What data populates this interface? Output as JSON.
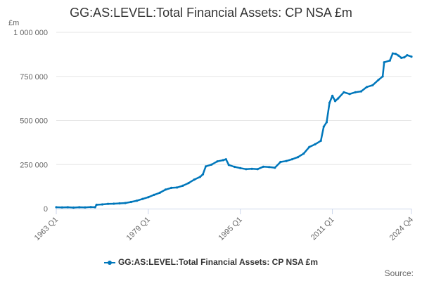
{
  "chart_data": {
    "type": "line",
    "title": "GG:AS:LEVEL:Total Financial Assets: CP NSA £m",
    "ylabel": "£m",
    "ylim": [
      0,
      1000000
    ],
    "yticks": [
      0,
      250000,
      500000,
      750000,
      1000000
    ],
    "ytick_labels": [
      "0",
      "250 000",
      "500 000",
      "750 000",
      "1 000 000"
    ],
    "xrange": [
      1963.0,
      2024.75
    ],
    "xticks": [
      {
        "x": 1963.0,
        "label": "1963 Q1"
      },
      {
        "x": 1979.0,
        "label": "1979 Q1"
      },
      {
        "x": 1995.0,
        "label": "1995 Q1"
      },
      {
        "x": 2011.0,
        "label": "2011 Q1"
      },
      {
        "x": 2024.75,
        "label": "2024 Q4"
      }
    ],
    "grid": true,
    "legend_position": "bottom",
    "color": "#0077bb",
    "series": [
      {
        "name": "GG:AS:LEVEL:Total Financial Assets: CP NSA £m",
        "points": [
          [
            1963.0,
            8000
          ],
          [
            1964.0,
            7000
          ],
          [
            1965.0,
            8000
          ],
          [
            1966.0,
            6000
          ],
          [
            1967.0,
            8000
          ],
          [
            1968.0,
            7000
          ],
          [
            1969.0,
            9000
          ],
          [
            1969.75,
            8000
          ],
          [
            1970.0,
            22000
          ],
          [
            1971.0,
            24000
          ],
          [
            1972.0,
            27000
          ],
          [
            1973.0,
            28000
          ],
          [
            1974.0,
            30000
          ],
          [
            1975.0,
            32000
          ],
          [
            1976.0,
            38000
          ],
          [
            1977.0,
            45000
          ],
          [
            1978.0,
            55000
          ],
          [
            1979.0,
            65000
          ],
          [
            1980.0,
            78000
          ],
          [
            1981.0,
            90000
          ],
          [
            1982.0,
            108000
          ],
          [
            1983.0,
            118000
          ],
          [
            1984.0,
            120000
          ],
          [
            1985.0,
            130000
          ],
          [
            1986.0,
            145000
          ],
          [
            1987.0,
            165000
          ],
          [
            1988.0,
            180000
          ],
          [
            1988.5,
            195000
          ],
          [
            1989.0,
            240000
          ],
          [
            1990.0,
            250000
          ],
          [
            1991.0,
            268000
          ],
          [
            1992.0,
            275000
          ],
          [
            1992.5,
            280000
          ],
          [
            1993.0,
            248000
          ],
          [
            1994.0,
            237000
          ],
          [
            1995.0,
            230000
          ],
          [
            1996.0,
            224000
          ],
          [
            1997.0,
            226000
          ],
          [
            1998.0,
            224000
          ],
          [
            1999.0,
            238000
          ],
          [
            2000.0,
            236000
          ],
          [
            2001.0,
            232000
          ],
          [
            2002.0,
            265000
          ],
          [
            2003.0,
            270000
          ],
          [
            2004.0,
            280000
          ],
          [
            2005.0,
            292000
          ],
          [
            2006.0,
            312000
          ],
          [
            2007.0,
            350000
          ],
          [
            2008.0,
            365000
          ],
          [
            2009.0,
            385000
          ],
          [
            2009.5,
            465000
          ],
          [
            2010.0,
            490000
          ],
          [
            2010.5,
            600000
          ],
          [
            2011.0,
            640000
          ],
          [
            2011.5,
            610000
          ],
          [
            2012.0,
            625000
          ],
          [
            2013.0,
            660000
          ],
          [
            2014.0,
            650000
          ],
          [
            2015.0,
            660000
          ],
          [
            2016.0,
            665000
          ],
          [
            2017.0,
            690000
          ],
          [
            2018.0,
            700000
          ],
          [
            2019.0,
            730000
          ],
          [
            2019.75,
            750000
          ],
          [
            2020.0,
            830000
          ],
          [
            2021.0,
            840000
          ],
          [
            2021.5,
            880000
          ],
          [
            2022.0,
            878000
          ],
          [
            2022.5,
            868000
          ],
          [
            2023.0,
            855000
          ],
          [
            2023.5,
            858000
          ],
          [
            2024.0,
            870000
          ],
          [
            2024.75,
            862000
          ]
        ]
      }
    ],
    "source_label": "Source:"
  }
}
